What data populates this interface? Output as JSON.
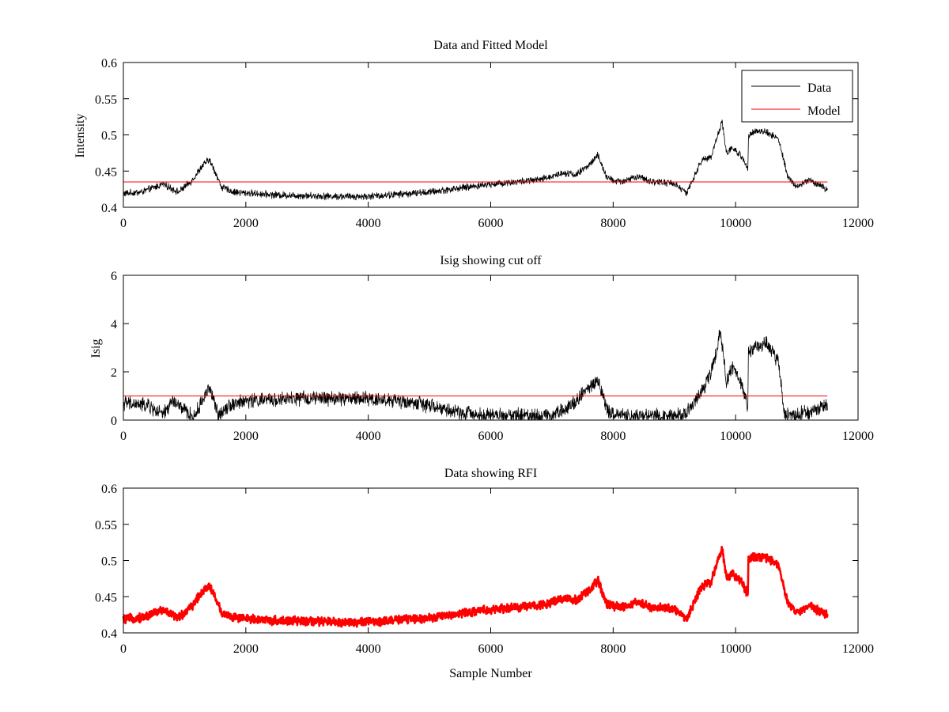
{
  "figure": {
    "background": "#ffffff",
    "data_color": "#000000",
    "model_color": "#ff0000"
  },
  "chart_data": [
    {
      "type": "line",
      "title": "Data and Fitted Model",
      "xlabel": "",
      "ylabel": "Intensity",
      "xlim": [
        0,
        12000
      ],
      "ylim": [
        0.4,
        0.6
      ],
      "xticks": [
        0,
        2000,
        4000,
        6000,
        8000,
        10000,
        12000
      ],
      "xtick_labels": [
        "0",
        "2000",
        "4000",
        "6000",
        "8000",
        "10000",
        "12000"
      ],
      "yticks": [
        0.4,
        0.45,
        0.5,
        0.55,
        0.6
      ],
      "ytick_labels": [
        "0.4",
        "0.45",
        "0.5",
        "0.55",
        "0.6"
      ],
      "grid": false,
      "legend": {
        "placement": "top-right",
        "entries": [
          "Data",
          "Model"
        ]
      },
      "series": [
        {
          "name": "Data",
          "color": "#000000",
          "style": "noisy-line",
          "noise_amplitude": 0.004,
          "x": [
            0,
            300,
            650,
            900,
            1100,
            1300,
            1400,
            1500,
            1600,
            1800,
            2500,
            3500,
            4000,
            5000,
            6000,
            6800,
            7200,
            7400,
            7600,
            7750,
            7900,
            8100,
            8400,
            8600,
            9000,
            9200,
            9300,
            9450,
            9600,
            9700,
            9780,
            9850,
            9950,
            10100,
            10200,
            10210,
            10300,
            10500,
            10700,
            10850,
            11000,
            11200,
            11500
          ],
          "y": [
            0.419,
            0.421,
            0.432,
            0.421,
            0.435,
            0.458,
            0.466,
            0.449,
            0.428,
            0.421,
            0.417,
            0.415,
            0.415,
            0.421,
            0.432,
            0.438,
            0.448,
            0.445,
            0.458,
            0.472,
            0.44,
            0.435,
            0.442,
            0.436,
            0.433,
            0.419,
            0.438,
            0.465,
            0.47,
            0.498,
            0.518,
            0.475,
            0.482,
            0.47,
            0.453,
            0.5,
            0.505,
            0.504,
            0.495,
            0.442,
            0.428,
            0.438,
            0.424
          ]
        },
        {
          "name": "Model",
          "color": "#ff0000",
          "style": "line",
          "x": [
            0,
            11500
          ],
          "y": [
            0.435,
            0.435
          ]
        }
      ]
    },
    {
      "type": "line",
      "title": "Isig showing cut off",
      "xlabel": "",
      "ylabel": "Isig",
      "xlim": [
        0,
        12000
      ],
      "ylim": [
        0,
        6
      ],
      "xticks": [
        0,
        2000,
        4000,
        6000,
        8000,
        10000,
        12000
      ],
      "xtick_labels": [
        "0",
        "2000",
        "4000",
        "6000",
        "8000",
        "10000",
        "12000"
      ],
      "yticks": [
        0,
        2,
        4,
        6
      ],
      "ytick_labels": [
        "0",
        "2",
        "4",
        "6"
      ],
      "grid": false,
      "series": [
        {
          "color": "#000000",
          "style": "noisy-line",
          "noise_amplitude": 0.25,
          "x": [
            0,
            400,
            650,
            800,
            1000,
            1150,
            1250,
            1400,
            1550,
            1700,
            2000,
            3000,
            4000,
            4800,
            5500,
            6000,
            7000,
            7300,
            7500,
            7750,
            7900,
            8100,
            9000,
            9200,
            9400,
            9500,
            9650,
            9750,
            9850,
            9950,
            10100,
            10200,
            10210,
            10300,
            10500,
            10700,
            10800,
            11000,
            11500
          ],
          "y": [
            0.7,
            0.6,
            0.2,
            0.8,
            0.4,
            0.1,
            0.6,
            1.4,
            0.2,
            0.6,
            0.8,
            0.9,
            0.9,
            0.7,
            0.3,
            0.2,
            0.2,
            0.6,
            1.1,
            1.7,
            0.4,
            0.2,
            0.2,
            0.3,
            1.0,
            1.4,
            2.4,
            3.7,
            1.6,
            2.2,
            1.4,
            0.6,
            2.8,
            3.0,
            3.2,
            2.4,
            0.2,
            0.2,
            0.6
          ]
        },
        {
          "color": "#ff0000",
          "style": "line",
          "x": [
            0,
            11500
          ],
          "y": [
            1.0,
            1.0
          ]
        }
      ]
    },
    {
      "type": "scatter",
      "title": "Data showing RFI",
      "xlabel": "Sample Number",
      "ylabel": "",
      "xlim": [
        0,
        12000
      ],
      "ylim": [
        0.4,
        0.6
      ],
      "xticks": [
        0,
        2000,
        4000,
        6000,
        8000,
        10000,
        12000
      ],
      "xtick_labels": [
        "0",
        "2000",
        "4000",
        "6000",
        "8000",
        "10000",
        "12000"
      ],
      "yticks": [
        0.4,
        0.45,
        0.5,
        0.55,
        0.6
      ],
      "ytick_labels": [
        "0.4",
        "0.45",
        "0.5",
        "0.55",
        "0.6"
      ],
      "grid": false,
      "series": [
        {
          "color": "#ff0000",
          "style": "thick-noisy-band",
          "noise_amplitude": 0.005,
          "x": [
            0,
            300,
            650,
            900,
            1100,
            1300,
            1400,
            1500,
            1600,
            1800,
            2500,
            3500,
            4000,
            5000,
            6000,
            6800,
            7200,
            7400,
            7600,
            7750,
            7900,
            8100,
            8400,
            8600,
            9000,
            9200,
            9300,
            9450,
            9600,
            9700,
            9780,
            9850,
            9950,
            10100,
            10200,
            10210,
            10300,
            10500,
            10700,
            10850,
            11000,
            11200,
            11500
          ],
          "y": [
            0.419,
            0.421,
            0.432,
            0.421,
            0.435,
            0.458,
            0.466,
            0.449,
            0.428,
            0.421,
            0.417,
            0.415,
            0.415,
            0.421,
            0.432,
            0.438,
            0.448,
            0.445,
            0.458,
            0.472,
            0.44,
            0.435,
            0.442,
            0.436,
            0.433,
            0.419,
            0.438,
            0.465,
            0.47,
            0.498,
            0.518,
            0.475,
            0.482,
            0.47,
            0.453,
            0.5,
            0.505,
            0.504,
            0.495,
            0.442,
            0.428,
            0.438,
            0.424
          ]
        }
      ]
    }
  ]
}
